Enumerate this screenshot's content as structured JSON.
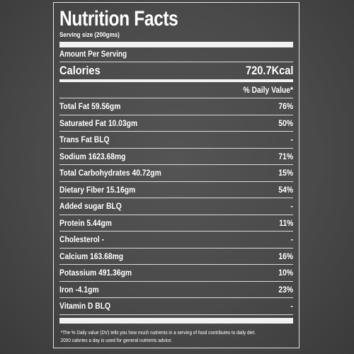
{
  "label": {
    "title": "Nutrition Facts",
    "serving_size": "Serving size (200gms)",
    "amount_per_serving": "Amount Per Serving",
    "calories_label": "Calories",
    "calories_value": "720.7Kcal",
    "daily_value_header": "% Daily Value*",
    "nutrients": [
      {
        "name": "Total Fat 59.56gm",
        "dv": "76%"
      },
      {
        "name": "Saturated Fat 10.03gm",
        "dv": "50%"
      },
      {
        "name": "Trans Fat BLQ",
        "dv": "-"
      },
      {
        "name": "Sodium 1623.68mg",
        "dv": "71%"
      },
      {
        "name": "Total Carbohydrates 40.72gm",
        "dv": "15%"
      },
      {
        "name": "Dietary Fiber 15.16gm",
        "dv": "54%"
      },
      {
        "name": "Added sugar BLQ",
        "dv": "-"
      },
      {
        "name": "Protein 5.44gm",
        "dv": "11%"
      },
      {
        "name": "Cholesterol -",
        "dv": "-"
      },
      {
        "name": "Calcium 163.68mg",
        "dv": "16%"
      },
      {
        "name": "Potassium 491.36gm",
        "dv": "10%"
      },
      {
        "name": "Iron -4.1gm",
        "dv": "23%"
      },
      {
        "name": "Vitamin D BLQ",
        "dv": "-"
      }
    ],
    "footnote_line1": "*The % Daily value (DV) tells you how much nutrients in a serving of food contributes to daily diet.",
    "footnote_line2": "2000 calories a day is used for general nutrients advice."
  }
}
